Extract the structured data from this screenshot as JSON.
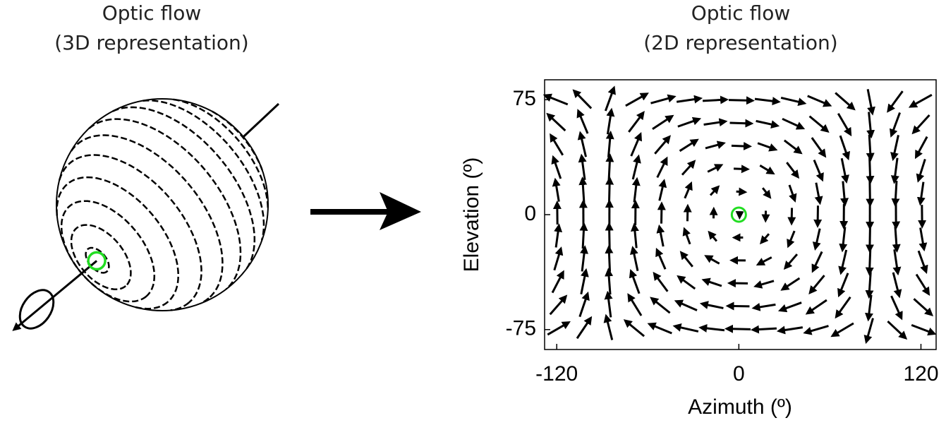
{
  "left_panel": {
    "title": [
      "Optic flow",
      "(3D representation)"
    ]
  },
  "chart_data": {
    "type": "quiver",
    "title": [
      "Optic flow",
      "(2D representation)"
    ],
    "xlabel": "Azimuth (º)",
    "ylabel": "Elevation (º)",
    "xlim": [
      -128,
      130
    ],
    "ylim": [
      -88,
      88
    ],
    "xticks": [
      -120,
      0,
      120
    ],
    "yticks": [
      75,
      0,
      -75
    ],
    "color": "#000000",
    "focus_color": "#22dd22"
  }
}
